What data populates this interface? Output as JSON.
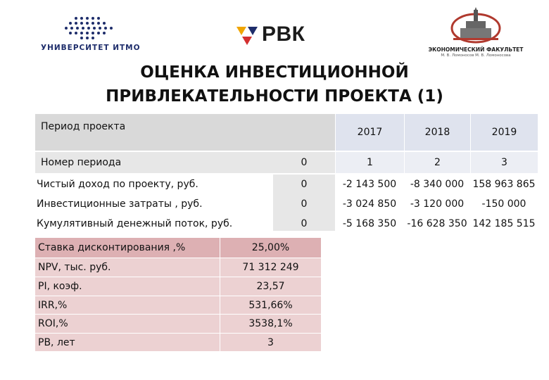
{
  "logos": {
    "itmo": {
      "name": "УНИВЕРСИТЕТ ИТМО",
      "color": "#1e2d6b"
    },
    "rvk": {
      "name": "РВК",
      "colors": [
        "#f0a500",
        "#1e2d6b",
        "#d32f2f"
      ]
    },
    "econ": {
      "name": "ЭКОНОМИЧЕСКИЙ ФАКУЛЬТЕТ",
      "sub": "М. В. Ломоносов М. В. Ломоносова"
    }
  },
  "title": {
    "line1": "ОЦЕНКА ИНВЕСТИЦИОННОЙ",
    "line2": "ПРИВЛЕКАТЕЛЬНОСТИ ПРОЕКТА (1)"
  },
  "periods": {
    "label": "Период проекта",
    "years": [
      "2017",
      "2018",
      "2019"
    ]
  },
  "period_numbers": {
    "label": "Номер периода",
    "values": [
      "0",
      "1",
      "2",
      "3"
    ]
  },
  "rows": [
    {
      "label": "Чистый доход по проекту, руб.",
      "values": [
        "0",
        "-2 143 500",
        "-8 340 000",
        "158 963 865"
      ]
    },
    {
      "label": "Инвестиционные затраты , руб.",
      "values": [
        "0",
        "-3 024 850",
        "-3 120 000",
        "-150 000"
      ]
    },
    {
      "label": "Кумулятивный  денежный поток, руб.",
      "values": [
        "0",
        "-5 168 350",
        "-16 628 350",
        "142 185 515"
      ]
    }
  ],
  "metrics": [
    {
      "label": "Ставка дисконтирования ,%",
      "value": "25,00%"
    },
    {
      "label": "NPV, тыс. руб.",
      "value": "71 312 249"
    },
    {
      "label": "PI, коэф.",
      "value": "23,57"
    },
    {
      "label": "IRR,%",
      "value": "531,66%"
    },
    {
      "label": "ROI,%",
      "value": "3538,1%"
    },
    {
      "label": "PB, лет",
      "value": "3"
    }
  ],
  "colors": {
    "header_gray": "#d9d9d9",
    "pink_dark": "#ddb0b3",
    "pink_light": "#ecd1d2"
  }
}
